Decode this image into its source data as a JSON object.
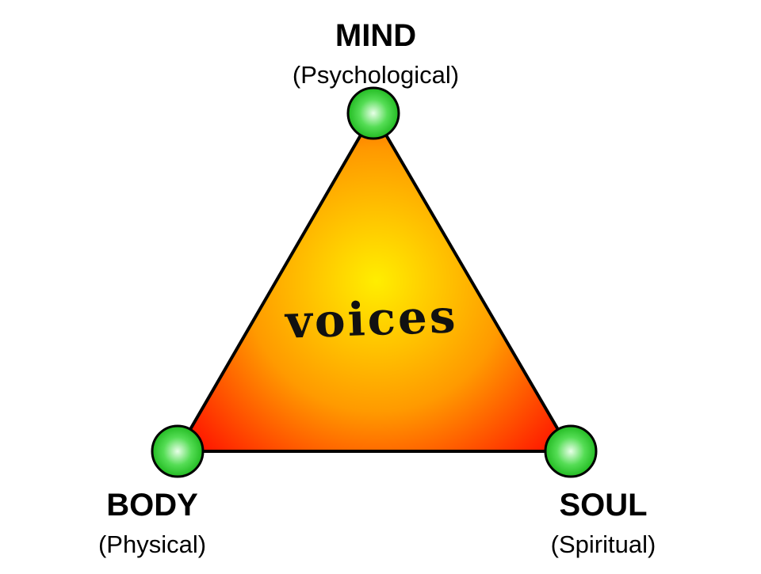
{
  "diagram": {
    "center_label": "voices",
    "nodes": [
      {
        "id": "mind",
        "title": "MIND",
        "subtitle": "(Psychological)"
      },
      {
        "id": "body",
        "title": "BODY",
        "subtitle": "(Physical)"
      },
      {
        "id": "soul",
        "title": "SOUL",
        "subtitle": "(Spiritual)"
      }
    ],
    "colors": {
      "triangle_center": "#ffee00",
      "triangle_mid": "#ff9a00",
      "triangle_edge": "#ff0000",
      "node_fill": "#22bb22",
      "node_highlight": "#e8ffe8",
      "outline": "#000000"
    }
  }
}
